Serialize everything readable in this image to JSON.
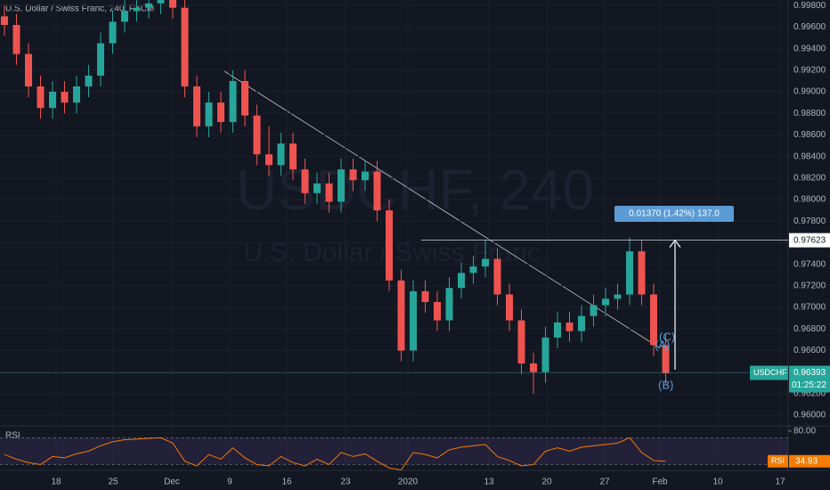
{
  "chart_data": {
    "type": "candlestick",
    "title": "U.S. Dollar / Swiss Franc, 240, FXCM",
    "watermark": {
      "symbol": "USDCHF, 240",
      "name": "U.S. Dollar / Swiss Franc"
    },
    "time_labels": [
      "18",
      "25",
      "Dec",
      "9",
      "16",
      "23",
      "2020",
      "13",
      "20",
      "27",
      "Feb",
      "10",
      "17"
    ],
    "up_color": "#26a69a",
    "down_color": "#ef5350",
    "ylim": [
      0.9605,
      0.99835
    ],
    "yticks": [
      {
        "value": 0.998,
        "label": "0.99800"
      },
      {
        "value": 0.996,
        "label": "0.99600"
      },
      {
        "value": 0.994,
        "label": "0.99400"
      },
      {
        "value": 0.992,
        "label": "0.99200"
      },
      {
        "value": 0.99,
        "label": "0.99000"
      },
      {
        "value": 0.988,
        "label": "0.98800"
      },
      {
        "value": 0.986,
        "label": "0.98600"
      },
      {
        "value": 0.984,
        "label": "0.98400"
      },
      {
        "value": 0.982,
        "label": "0.98200"
      },
      {
        "value": 0.98,
        "label": "0.98000"
      },
      {
        "value": 0.978,
        "label": "0.97800"
      },
      {
        "value": 0.976,
        "label": "0.97600"
      },
      {
        "value": 0.974,
        "label": "0.97400"
      },
      {
        "value": 0.972,
        "label": "0.97200"
      },
      {
        "value": 0.97,
        "label": "0.97000"
      },
      {
        "value": 0.968,
        "label": "0.96800"
      },
      {
        "value": 0.966,
        "label": "0.96600"
      },
      {
        "value": 0.964,
        "label": "0.96400"
      },
      {
        "value": 0.962,
        "label": "0.96200"
      },
      {
        "value": 0.96,
        "label": "0.96000"
      }
    ],
    "candles": [
      [
        0.997,
        0.998,
        0.9952,
        0.9962
      ],
      [
        0.9962,
        0.9972,
        0.9925,
        0.9935
      ],
      [
        0.9935,
        0.9945,
        0.9895,
        0.9905
      ],
      [
        0.9905,
        0.9915,
        0.9875,
        0.9885
      ],
      [
        0.9885,
        0.991,
        0.9875,
        0.99
      ],
      [
        0.99,
        0.991,
        0.988,
        0.989
      ],
      [
        0.989,
        0.9915,
        0.988,
        0.9905
      ],
      [
        0.9905,
        0.9925,
        0.9895,
        0.9915
      ],
      [
        0.9915,
        0.9955,
        0.9905,
        0.9945
      ],
      [
        0.9945,
        0.9975,
        0.9935,
        0.9965
      ],
      [
        0.9965,
        0.9985,
        0.9955,
        0.9975
      ],
      [
        0.9975,
        0.9988,
        0.9965,
        0.9978
      ],
      [
        0.9978,
        0.9992,
        0.9968,
        0.9982
      ],
      [
        0.9982,
        0.9996,
        0.9972,
        0.9986
      ],
      [
        0.9986,
        0.9996,
        0.9968,
        0.9978
      ],
      [
        0.9978,
        0.9988,
        0.9895,
        0.9905
      ],
      [
        0.9905,
        0.9915,
        0.9858,
        0.9868
      ],
      [
        0.9868,
        0.99,
        0.9858,
        0.989
      ],
      [
        0.989,
        0.99,
        0.9862,
        0.9872
      ],
      [
        0.9872,
        0.992,
        0.9862,
        0.991
      ],
      [
        0.991,
        0.992,
        0.9868,
        0.9878
      ],
      [
        0.9878,
        0.9888,
        0.9832,
        0.9842
      ],
      [
        0.9842,
        0.9868,
        0.9822,
        0.9832
      ],
      [
        0.9832,
        0.9862,
        0.9822,
        0.9852
      ],
      [
        0.9852,
        0.9862,
        0.9818,
        0.9828
      ],
      [
        0.9828,
        0.9838,
        0.9796,
        0.9806
      ],
      [
        0.9806,
        0.9825,
        0.9796,
        0.9815
      ],
      [
        0.9815,
        0.9825,
        0.9788,
        0.9798
      ],
      [
        0.9798,
        0.9838,
        0.9788,
        0.9828
      ],
      [
        0.9828,
        0.9838,
        0.9808,
        0.9818
      ],
      [
        0.9818,
        0.9836,
        0.9808,
        0.9826
      ],
      [
        0.9826,
        0.9836,
        0.978,
        0.979
      ],
      [
        0.979,
        0.98,
        0.9715,
        0.9725
      ],
      [
        0.9725,
        0.9735,
        0.965,
        0.966
      ],
      [
        0.966,
        0.9725,
        0.965,
        0.9715
      ],
      [
        0.9715,
        0.9725,
        0.9695,
        0.9705
      ],
      [
        0.9705,
        0.9715,
        0.9678,
        0.9688
      ],
      [
        0.9688,
        0.9728,
        0.9678,
        0.9718
      ],
      [
        0.9718,
        0.9742,
        0.9708,
        0.9732
      ],
      [
        0.9732,
        0.9748,
        0.9722,
        0.9738
      ],
      [
        0.9738,
        0.9762,
        0.9728,
        0.9745
      ],
      [
        0.9745,
        0.9755,
        0.9702,
        0.9712
      ],
      [
        0.9712,
        0.9722,
        0.9678,
        0.9688
      ],
      [
        0.9688,
        0.9698,
        0.9638,
        0.9648
      ],
      [
        0.9648,
        0.9658,
        0.962,
        0.964
      ],
      [
        0.964,
        0.9682,
        0.963,
        0.9672
      ],
      [
        0.9672,
        0.9696,
        0.9662,
        0.9686
      ],
      [
        0.9686,
        0.9696,
        0.9668,
        0.9678
      ],
      [
        0.9678,
        0.9702,
        0.9668,
        0.9692
      ],
      [
        0.9692,
        0.9712,
        0.9682,
        0.9702
      ],
      [
        0.9702,
        0.9718,
        0.9692,
        0.9708
      ],
      [
        0.9708,
        0.9722,
        0.9698,
        0.9712
      ],
      [
        0.9712,
        0.9765,
        0.9702,
        0.9752
      ],
      [
        0.9752,
        0.9762,
        0.9702,
        0.9712
      ],
      [
        0.9712,
        0.9722,
        0.9655,
        0.9665
      ],
      [
        0.9665,
        0.9675,
        0.9629,
        0.9639
      ]
    ],
    "target_level": 0.97623,
    "symbol_tag": "USDCHF",
    "last_price": 0.96393,
    "countdown": "01:25:22",
    "measure_label": "0.01370 (1.42%) 137.0",
    "wave_labels": [
      "(A)",
      "(B)",
      "(C)"
    ],
    "rsi": {
      "name": "RSI",
      "color": "#f57c00",
      "ylim": [
        20,
        85
      ],
      "yticks": [
        {
          "value": 80,
          "label": "80.00"
        }
      ],
      "values": [
        45,
        38,
        33,
        30,
        42,
        40,
        46,
        50,
        58,
        64,
        67,
        68,
        69,
        70,
        62,
        35,
        28,
        45,
        38,
        55,
        40,
        30,
        28,
        42,
        33,
        28,
        38,
        30,
        48,
        42,
        46,
        35,
        25,
        22,
        48,
        45,
        40,
        52,
        56,
        58,
        60,
        42,
        36,
        28,
        30,
        50,
        55,
        50,
        56,
        58,
        60,
        62,
        70,
        48,
        36,
        34.93
      ]
    }
  }
}
